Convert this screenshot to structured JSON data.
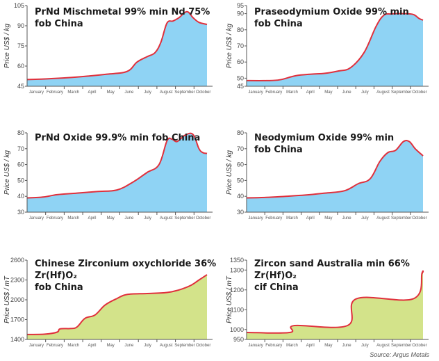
{
  "source": "Source: Argus Metals",
  "chart_data": [
    {
      "type": "area",
      "title": "PrNd Mischmetal 99% min Nd 75%\nfob China",
      "ylabel": "Price US$ / kg",
      "xlabel": "",
      "categories": [
        "January",
        "February",
        "March",
        "April",
        "May",
        "June",
        "July",
        "August",
        "September",
        "October"
      ],
      "yticks": [
        45,
        60,
        75,
        90,
        105
      ],
      "ylim": [
        45,
        105
      ],
      "fill": "#8fd3f4",
      "line": "#e0303c",
      "x": [
        0,
        1,
        2,
        3,
        4,
        5,
        5.5,
        6,
        6.4,
        6.7,
        7.0,
        7.3,
        7.6,
        8.0,
        8.3,
        8.6,
        9.0
      ],
      "values": [
        50,
        50.5,
        51.3,
        52.5,
        54,
        56,
        63,
        67,
        70,
        78,
        92,
        93.5,
        96,
        100.5,
        96,
        92.5,
        91
      ]
    },
    {
      "type": "area",
      "title": "Praseodymium Oxide 99% min\nfob China",
      "ylabel": "Price US$ / kg",
      "xlabel": "",
      "categories": [
        "January",
        "February",
        "March",
        "April",
        "May",
        "June",
        "July",
        "August",
        "September",
        "October"
      ],
      "yticks": [
        45,
        50,
        60,
        70,
        80,
        90,
        95
      ],
      "ylim": [
        45,
        95
      ],
      "fill": "#8fd3f4",
      "line": "#e0303c",
      "x": [
        0,
        1,
        1.7,
        2.5,
        3.3,
        4,
        4.7,
        5.3,
        6.0,
        6.6,
        7.0,
        7.4,
        8.0,
        8.5,
        8.8,
        9.0
      ],
      "values": [
        48.5,
        48.5,
        49,
        51.5,
        52.5,
        53,
        54.5,
        56.5,
        66,
        82,
        89,
        89.8,
        90,
        89.5,
        87,
        86
      ]
    },
    {
      "type": "area",
      "title": "PrNd Oxide 99.9% min fob China",
      "ylabel": "Price US$ / kg",
      "xlabel": "",
      "categories": [
        "January",
        "February",
        "March",
        "April",
        "May",
        "June",
        "July",
        "August",
        "September",
        "October"
      ],
      "yticks": [
        30,
        40,
        50,
        60,
        70,
        80
      ],
      "ylim": [
        30,
        80
      ],
      "fill": "#8fd3f4",
      "line": "#e0303c",
      "x": [
        0,
        0.8,
        1.5,
        2.5,
        3.5,
        4.5,
        5.3,
        6.0,
        6.6,
        7.0,
        7.25,
        7.5,
        7.9,
        8.3,
        8.6,
        8.8,
        9.0
      ],
      "values": [
        39,
        39.5,
        41,
        42,
        43,
        44,
        49,
        55,
        60,
        75,
        76,
        74.5,
        78.5,
        79,
        70,
        67.5,
        67
      ]
    },
    {
      "type": "area",
      "title": "Neodymium Oxide 99% min\nfob China",
      "ylabel": "Price US$ / kg",
      "xlabel": "",
      "categories": [
        "January",
        "February",
        "March",
        "April",
        "May",
        "June",
        "July",
        "August",
        "September",
        "October"
      ],
      "yticks": [
        30,
        40,
        50,
        60,
        70,
        80
      ],
      "ylim": [
        30,
        80
      ],
      "fill": "#8fd3f4",
      "line": "#e0303c",
      "x": [
        0,
        1,
        2,
        3,
        4,
        5,
        5.7,
        6.3,
        6.8,
        7.2,
        7.6,
        8.0,
        8.3,
        8.6,
        9.0
      ],
      "values": [
        39,
        39.3,
        40,
        40.8,
        42,
        43.5,
        48,
        51,
        62,
        67.5,
        69,
        74.5,
        74.5,
        70,
        65.5
      ]
    },
    {
      "type": "area",
      "title": "Chinese Zirconium oxychloride 36% Zr(Hf)O₂\nfob China",
      "ylabel": "Price US$ / mT",
      "xlabel": "",
      "categories": [
        "January",
        "February",
        "March",
        "April",
        "May",
        "June",
        "July",
        "August",
        "September",
        "October"
      ],
      "yticks": [
        1400,
        1700,
        2000,
        2300,
        2600
      ],
      "ylim": [
        1400,
        2600
      ],
      "fill": "#d3e38a",
      "line": "#e0303c",
      "x": [
        0,
        0.9,
        1.5,
        1.65,
        2.2,
        2.5,
        2.9,
        3.4,
        3.9,
        4.5,
        5.0,
        6.0,
        7.0,
        7.6,
        8.2,
        8.6,
        9.0
      ],
      "values": [
        1475,
        1480,
        1510,
        1560,
        1565,
        1590,
        1720,
        1770,
        1920,
        2020,
        2080,
        2095,
        2110,
        2150,
        2220,
        2300,
        2380
      ]
    },
    {
      "type": "area",
      "title": "Zircon sand Australia min 66% Zr(Hf)O₂\ncif China",
      "ylabel": "Price US$ / mT",
      "xlabel": "",
      "categories": [
        "January",
        "February",
        "March",
        "April",
        "May",
        "June",
        "July",
        "August",
        "September",
        "October"
      ],
      "yticks": [
        950,
        1000,
        1100,
        1200,
        1300,
        1350
      ],
      "ylim": [
        950,
        1350
      ],
      "fill": "#d3e38a",
      "line": "#e0303c",
      "step": true,
      "x": [
        0,
        2.2,
        2.45,
        5.15,
        5.6,
        8.5,
        8.95,
        9.0
      ],
      "values": [
        985,
        985,
        1020,
        1020,
        1155,
        1155,
        1285,
        1285
      ]
    }
  ]
}
